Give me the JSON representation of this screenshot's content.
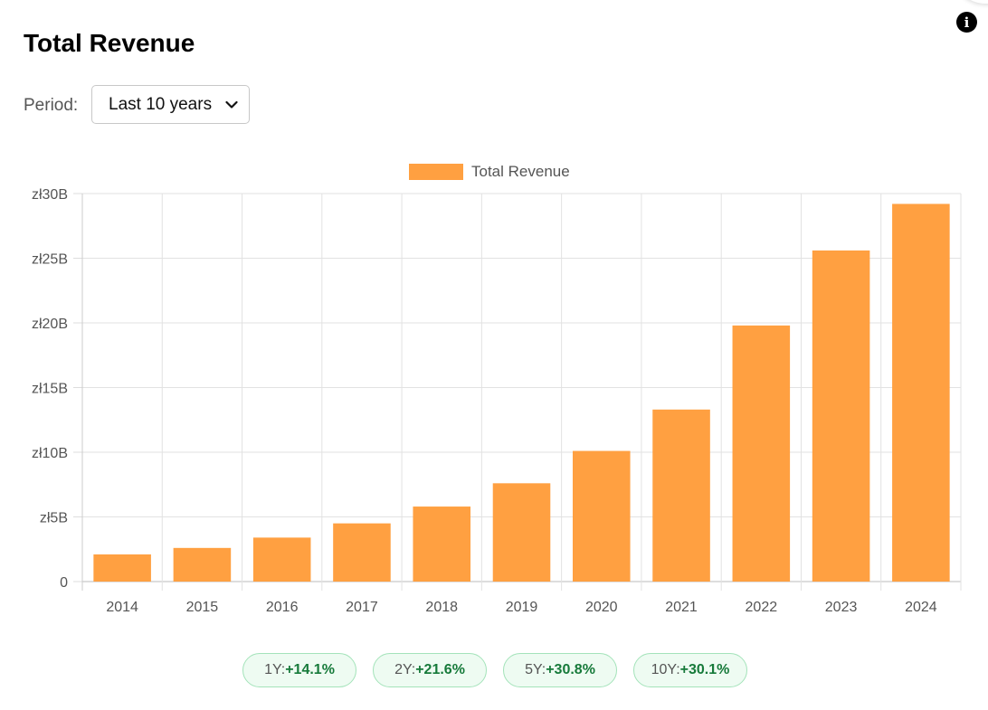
{
  "page": {
    "title": "Total Revenue"
  },
  "period": {
    "label": "Period:",
    "selected": "Last 10 years"
  },
  "icons": {
    "info": "info-icon",
    "dropdown": "chevron-down-icon"
  },
  "chart_data": {
    "type": "bar",
    "categories": [
      "2014",
      "2015",
      "2016",
      "2017",
      "2018",
      "2019",
      "2020",
      "2021",
      "2022",
      "2023",
      "2024"
    ],
    "series": [
      {
        "name": "Total Revenue",
        "color": "#ffa041",
        "values": [
          2.1,
          2.6,
          3.4,
          4.5,
          5.8,
          7.6,
          10.1,
          13.3,
          19.8,
          25.6,
          29.2
        ]
      }
    ],
    "yticks": [
      "0",
      "zł5B",
      "zł10B",
      "zł15B",
      "zł20B",
      "zł25B",
      "zł30B"
    ],
    "ylim": [
      0,
      30
    ],
    "unit": "billion zł",
    "grid": true,
    "legend": "top-center",
    "title": "",
    "xlabel": "",
    "ylabel": ""
  },
  "growth": [
    {
      "label": "1Y:",
      "value": "+14.1%"
    },
    {
      "label": "2Y:",
      "value": "+21.6%"
    },
    {
      "label": "5Y:",
      "value": "+30.8%"
    },
    {
      "label": "10Y:",
      "value": "+30.1%"
    }
  ]
}
